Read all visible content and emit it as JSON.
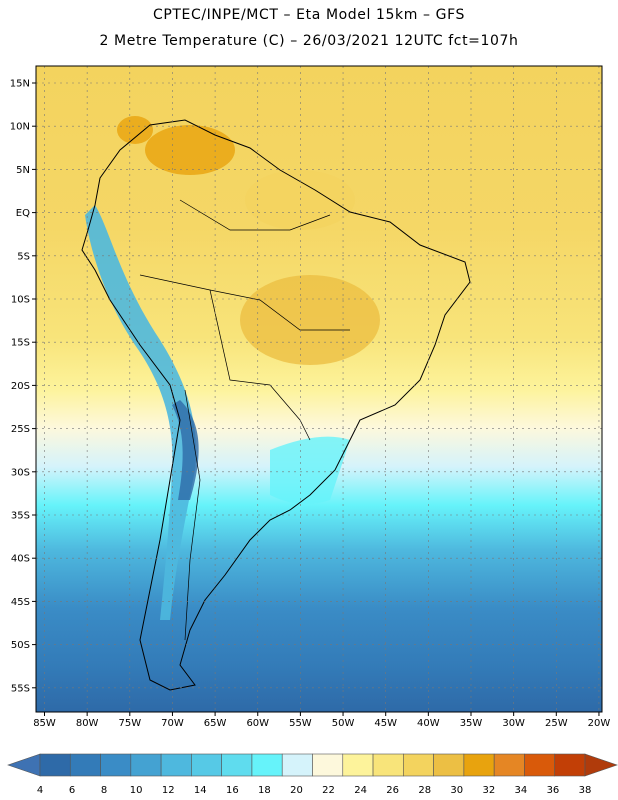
{
  "header": {
    "line1": "CPTEC/INPE/MCT –  Eta Model 15km – GFS",
    "line2": "2 Metre Temperature (C) – 26/03/2021 12UTC fct=107h"
  },
  "map": {
    "lat_labels": [
      "15N",
      "10N",
      "5N",
      "EQ",
      "5S",
      "10S",
      "15S",
      "20S",
      "25S",
      "30S",
      "35S",
      "40S",
      "45S",
      "50S",
      "55S"
    ],
    "lon_labels": [
      "85W",
      "80W",
      "75W",
      "70W",
      "65W",
      "60W",
      "55W",
      "50W",
      "45W",
      "40W",
      "35W",
      "30W",
      "25W",
      "20W"
    ]
  },
  "colorbar": {
    "values": [
      "4",
      "6",
      "8",
      "10",
      "12",
      "14",
      "16",
      "18",
      "20",
      "22",
      "24",
      "26",
      "28",
      "30",
      "32",
      "34",
      "36",
      "38"
    ],
    "colors": [
      "#2e6aa8",
      "#337bb8",
      "#3a8cc6",
      "#44a2d2",
      "#4eb8de",
      "#56c9e6",
      "#5fdcee",
      "#66f3fa",
      "#d5f3fb",
      "#fdf8dc",
      "#fdf39b",
      "#f8e47a",
      "#f3d35e",
      "#ecbf44",
      "#e8a30e",
      "#e58624",
      "#d95a0a",
      "#c23f06"
    ],
    "low_color": "#3e72b3",
    "high_color": "#b03b0b"
  }
}
